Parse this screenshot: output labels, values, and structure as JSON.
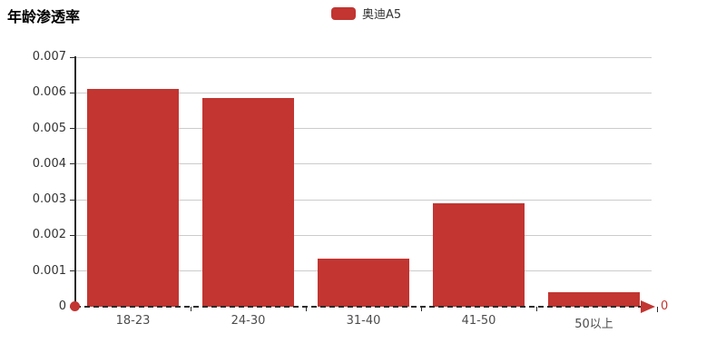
{
  "title": "年龄渗透率",
  "legend": {
    "items": [
      {
        "label": "奥迪A5",
        "color": "#c23531"
      }
    ]
  },
  "colors": {
    "bar": "#c23531",
    "grid": "#cccccc",
    "axis": "#2b2b2b",
    "y_tick_label": "#333333",
    "x_cat_label": "#4d4d4d",
    "accent_red": "#c23531"
  },
  "axis_end_label": "0",
  "chart_data": {
    "type": "bar",
    "title": "年龄渗透率",
    "categories": [
      "18-23",
      "24-30",
      "31-40",
      "41-50",
      "50以上"
    ],
    "series": [
      {
        "name": "奥迪A5",
        "values": [
          0.0061,
          0.00585,
          0.00135,
          0.0029,
          0.0004
        ]
      }
    ],
    "xlabel": "",
    "ylabel": "",
    "ylim": [
      0,
      0.007
    ],
    "yticks": [
      0,
      0.001,
      0.002,
      0.003,
      0.004,
      0.005,
      0.006,
      0.007
    ],
    "grid": true,
    "legend_position": "top-center",
    "x_axis_style": "dashed-black-with-red-arrow-and-origin-dot",
    "x_axis_end_label": "0"
  }
}
